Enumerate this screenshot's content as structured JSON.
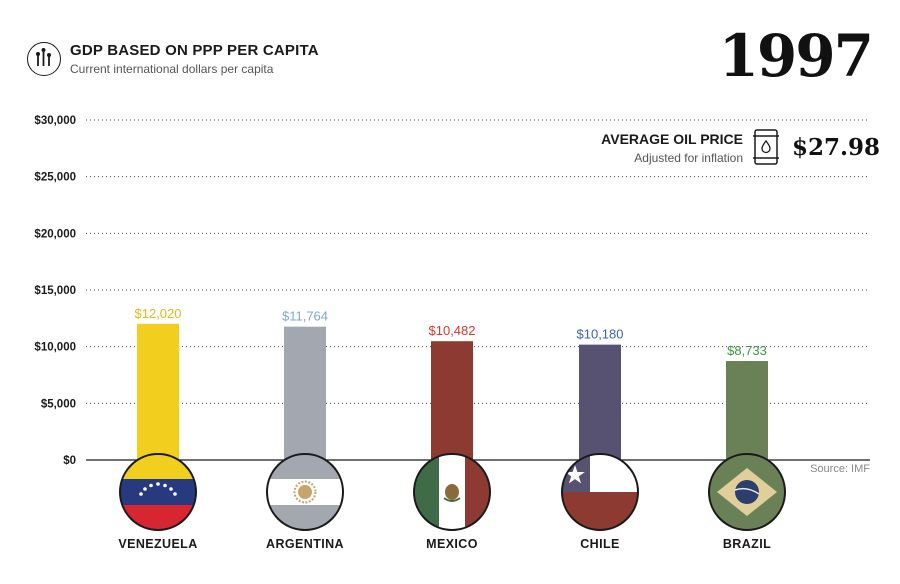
{
  "header": {
    "title": "GDP BASED ON PPP PER CAPITA",
    "subtitle": "Current international dollars per capita",
    "year": "1997",
    "icon": "bar-chart-icon"
  },
  "oil": {
    "title": "AVERAGE OIL PRICE",
    "subtitle": "Adjusted for inflation",
    "price": "$27.98",
    "icon": "oil-barrel-icon"
  },
  "source": "Source: IMF",
  "chart_data": {
    "type": "bar",
    "title": "GDP BASED ON PPP PER CAPITA",
    "subtitle": "Current international dollars per capita",
    "categories": [
      "VENEZUELA",
      "ARGENTINA",
      "MEXICO",
      "CHILE",
      "BRAZIL"
    ],
    "values": [
      12020,
      11764,
      10482,
      10180,
      8733
    ],
    "value_labels": [
      "$12,020",
      "$11,764",
      "$10,482",
      "$10,180",
      "$8,733"
    ],
    "bar_colors": [
      "#f2cf1f",
      "#a3a8b0",
      "#8c3a32",
      "#575272",
      "#6a8158"
    ],
    "label_colors": [
      "#e3b81a",
      "#7ba9d4",
      "#d2382c",
      "#3d63a8",
      "#3f9442"
    ],
    "flags": [
      "venezuela-flag-icon",
      "argentina-flag-icon",
      "mexico-flag-icon",
      "chile-flag-icon",
      "brazil-flag-icon"
    ],
    "y_ticks": [
      0,
      5000,
      10000,
      15000,
      20000,
      25000,
      30000
    ],
    "y_tick_labels": [
      "$0",
      "$5,000",
      "$10,000",
      "$15,000",
      "$20,000",
      "$25,000",
      "$30,000"
    ],
    "ylim": [
      0,
      30000
    ],
    "grid": true,
    "grid_style": "dotted",
    "legend": "none"
  }
}
